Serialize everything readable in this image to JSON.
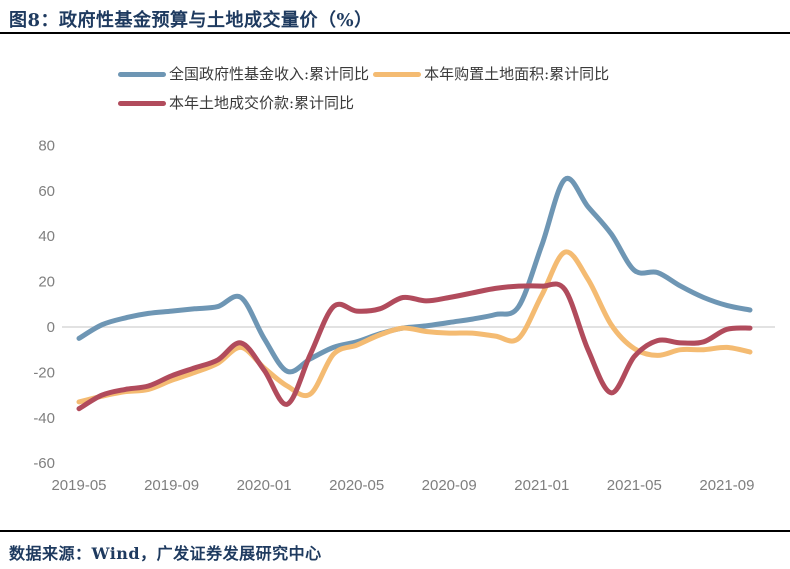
{
  "header": {
    "title": "图8：政府性基金预算与土地成交量价（%）"
  },
  "footer": {
    "source": "数据来源：Wind，广发证券发展研究中心"
  },
  "colors": {
    "title_navy": "#1e3a5f",
    "axis_text": "#7f7f7f",
    "zero_line": "#d9d9d9",
    "rule_black": "#000000",
    "series_blue": "#6e96b4",
    "series_orange": "#f4bb72",
    "series_red": "#b14b5c"
  },
  "chart_data": {
    "type": "line",
    "title": "图8：政府性基金预算与土地成交量价（%）",
    "x_monthly_points": 30,
    "x_start_label": "2019-05",
    "x_end_label": "2021-10",
    "x_tick_labels": [
      "2019-05",
      "2019-09",
      "2020-01",
      "2020-05",
      "2020-09",
      "2021-01",
      "2021-05",
      "2021-09"
    ],
    "x_tick_month_indices": [
      0,
      4,
      8,
      12,
      16,
      20,
      24,
      28
    ],
    "ylim": [
      -60,
      80
    ],
    "y_ticks": [
      80,
      60,
      40,
      20,
      0,
      -20,
      -40,
      -60
    ],
    "grid": "zero-line-only",
    "legend_position": "top",
    "line_width": 5,
    "series": [
      {
        "name": "全国政府性基金收入:累计同比",
        "color": "#6e96b4",
        "values": [
          -5,
          1,
          4,
          6,
          7,
          8,
          9,
          13,
          -5,
          -19.5,
          -14,
          -9,
          -6.5,
          -3,
          -0.5,
          0.5,
          2,
          3.5,
          5.5,
          9,
          36,
          65,
          53,
          41,
          25,
          24,
          18,
          13,
          9.5,
          7.5
        ]
      },
      {
        "name": "本年购置土地面积:累计同比",
        "color": "#f4bb72",
        "values": [
          -33,
          -30.5,
          -28.5,
          -27.5,
          -23.5,
          -20,
          -16,
          -9,
          -18,
          -26,
          -29.5,
          -12,
          -8,
          -3.5,
          -0.5,
          -2,
          -2.7,
          -2.7,
          -4,
          -5,
          14,
          33,
          21,
          1,
          -9.5,
          -12.5,
          -10,
          -10,
          -9,
          -11
        ]
      },
      {
        "name": "本年土地成交价款:累计同比",
        "color": "#b14b5c",
        "values": [
          -36,
          -30,
          -27.5,
          -26,
          -21.5,
          -18,
          -14.5,
          -7,
          -19,
          -34,
          -12,
          9,
          7,
          8,
          13,
          11.5,
          13,
          15,
          17,
          18,
          18,
          16.5,
          -10,
          -29,
          -13,
          -6,
          -7,
          -6.5,
          -1,
          -0.5
        ]
      }
    ]
  }
}
